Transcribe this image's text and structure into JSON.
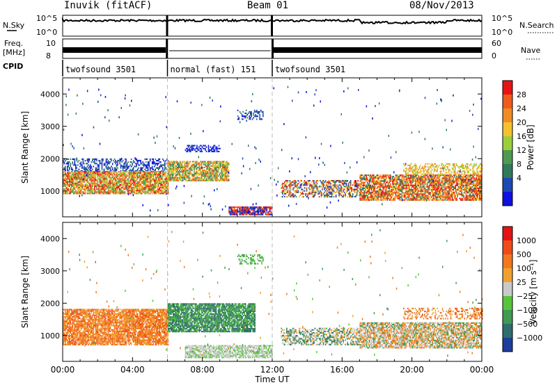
{
  "header": {
    "title": "Inuvik (fitACF)",
    "beam": "Beam 01",
    "date": "08/Nov/2013"
  },
  "panel_labels": {
    "nsky": "N.Sky",
    "freq": "Freq.",
    "freq_unit": "[MHz]",
    "cpid": "CPID",
    "nsearch": "N.Search",
    "nave": "Nave"
  },
  "cpid_segments": [
    {
      "label": "twofsound 3501",
      "start": 0.0,
      "end": 6.0
    },
    {
      "label": "normal (fast) 151",
      "start": 6.0,
      "end": 12.0
    },
    {
      "label": "twofsound 3501",
      "start": 12.0,
      "end": 24.0
    }
  ],
  "colors": {
    "power_scale": [
      "#1010e0",
      "#1e48b4",
      "#2f7a5a",
      "#4e9a52",
      "#9cce3c",
      "#f3c22c",
      "#f08c24",
      "#f05a1c",
      "#e81414"
    ],
    "velocity_scale": [
      "#1e3e9c",
      "#2e6e6e",
      "#3f9a52",
      "#58c43c",
      "#c9c9c9",
      "#f0a030",
      "#f07820",
      "#f04a1a",
      "#e41414"
    ]
  },
  "chart_data": [
    {
      "type": "heatmap",
      "name": "power",
      "x_label": "Time UT",
      "y_label": "Slant Range [km]",
      "xlim": [
        0,
        24
      ],
      "ylim": [
        200,
        4500
      ],
      "x_ticks": [
        "00:00",
        "04:00",
        "08:00",
        "12:00",
        "16:00",
        "20:00",
        "00:00"
      ],
      "y_ticks": [
        1000,
        2000,
        3000,
        4000
      ],
      "colorbar": {
        "label": "Power [dB]",
        "ticks": [
          "4",
          "8",
          "12",
          "16",
          "20",
          "24",
          "28"
        ]
      }
    },
    {
      "type": "heatmap",
      "name": "velocity",
      "x_label": "Time UT",
      "y_label": "Slant Range [km]",
      "xlim": [
        0,
        24
      ],
      "ylim": [
        200,
        4500
      ],
      "x_ticks": [
        "00:00",
        "04:00",
        "08:00",
        "12:00",
        "16:00",
        "20:00",
        "00:00"
      ],
      "y_ticks": [
        1000,
        2000,
        3000,
        4000
      ],
      "colorbar": {
        "label": "Velocity [m s⁻¹]",
        "ticks": [
          "1000",
          "500",
          "100",
          "25",
          "−25",
          "−100",
          "−500",
          "−1000"
        ]
      }
    }
  ],
  "axes": {
    "nsky_ticks": [
      "10^5",
      "10^0"
    ],
    "nsearch_ticks": [
      "10^5",
      "10^0"
    ],
    "freq_ticks": [
      "10",
      "8"
    ],
    "nave_ticks": [
      "60",
      "0"
    ],
    "time_label": "Time UT"
  }
}
